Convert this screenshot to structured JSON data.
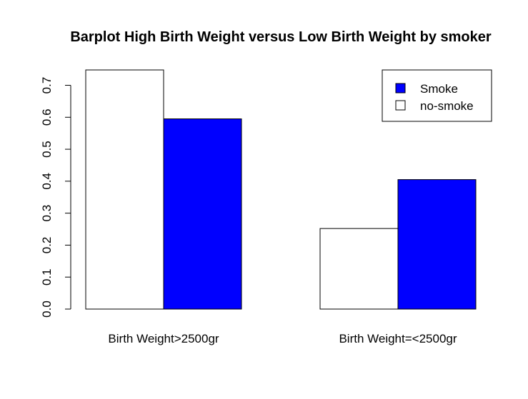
{
  "chart_data": {
    "type": "bar",
    "title": "Barplot High Birth Weight versus Low Birth Weight by smoker",
    "categories": [
      "Birth Weight>2500gr",
      "Birth Weight=<2500gr"
    ],
    "series": [
      {
        "name": "no-smoke",
        "color": "#ffffff",
        "values": [
          0.748,
          0.252
        ]
      },
      {
        "name": "Smoke",
        "color": "#0000ff",
        "values": [
          0.595,
          0.405
        ]
      }
    ],
    "ylim": [
      0,
      0.7
    ],
    "yticks": [
      "0.0",
      "0.1",
      "0.2",
      "0.3",
      "0.4",
      "0.5",
      "0.6",
      "0.7"
    ],
    "grouped": true,
    "grid": false,
    "legend": {
      "position": "top-right",
      "entries": [
        {
          "label": "Smoke",
          "color": "#0000ff"
        },
        {
          "label": "no-smoke",
          "color": "#ffffff"
        }
      ]
    }
  }
}
